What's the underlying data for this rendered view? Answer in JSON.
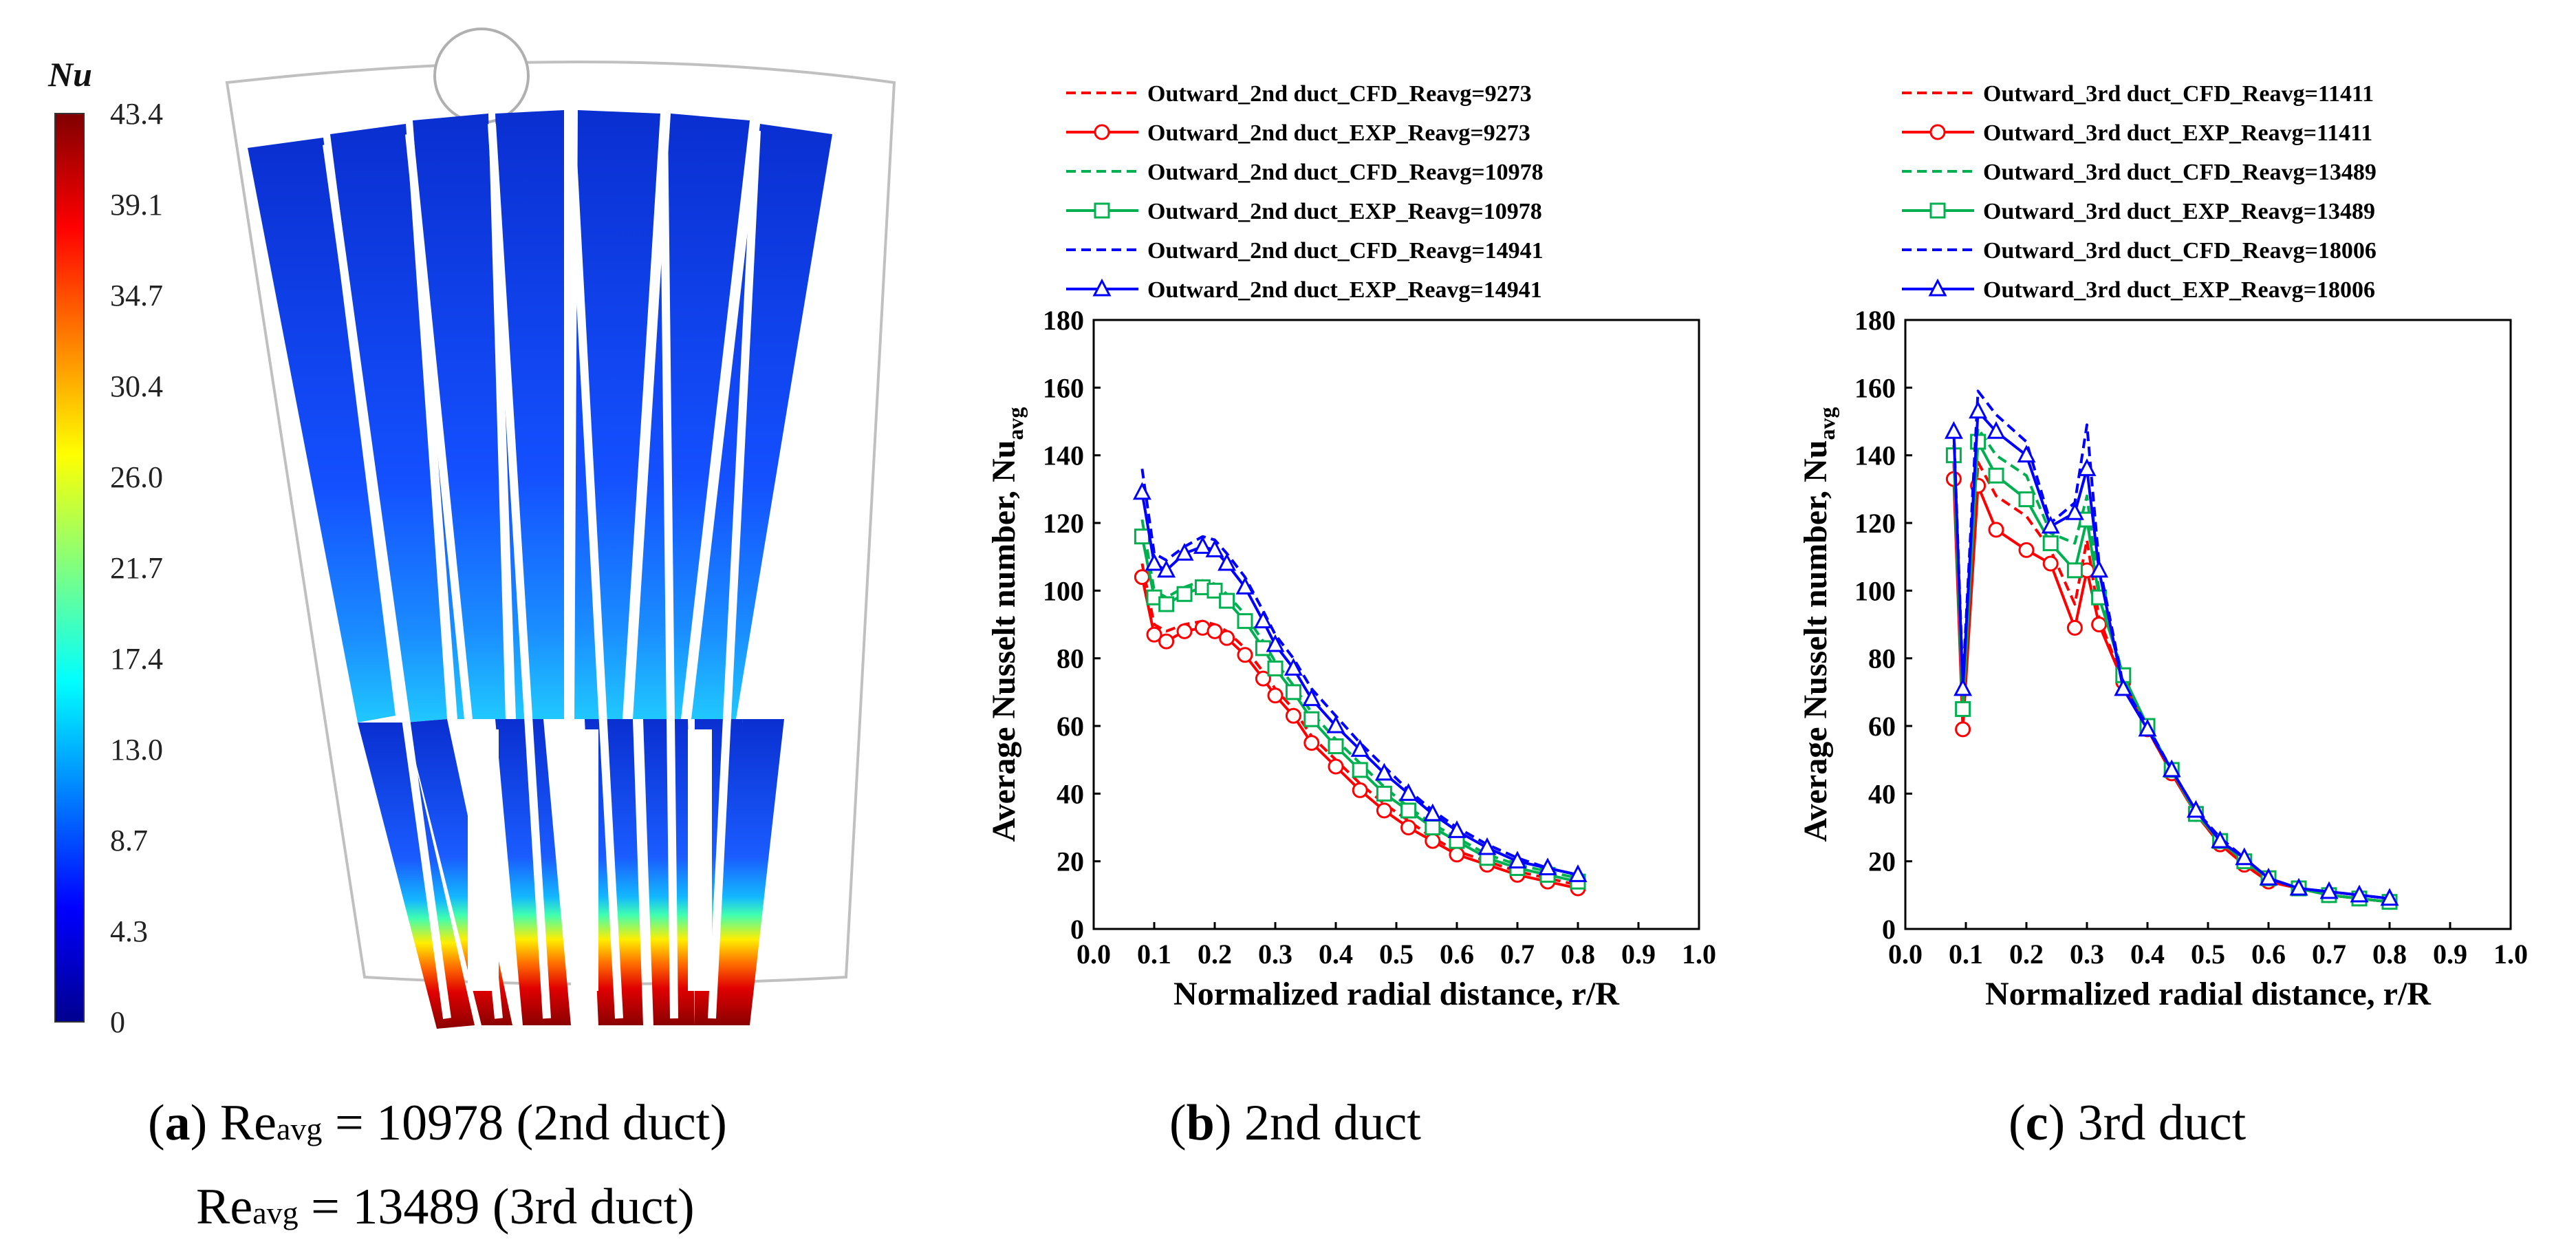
{
  "panel_a": {
    "colorbar": {
      "title": "Nu",
      "ticks": [
        "43.4",
        "39.1",
        "34.7",
        "30.4",
        "26.0",
        "21.7",
        "17.4",
        "13.0",
        "8.7",
        "4.3",
        "0"
      ],
      "range": [
        0,
        43.4
      ],
      "colors": [
        "#00008f",
        "#0000ff",
        "#0080ff",
        "#00ffff",
        "#80ff80",
        "#ffff00",
        "#ff8000",
        "#ff0000",
        "#800000"
      ]
    },
    "caption_letter": "a",
    "caption_line1_pre": "Re",
    "caption_line1_sub": "avg",
    "caption_line1_post": " = 10978 (2nd duct)",
    "caption_line2_pre": "Re",
    "caption_line2_sub": "avg",
    "caption_line2_post": " = 13489 (3rd duct)"
  },
  "chart_data": [
    {
      "type": "line",
      "panel": "b",
      "caption_letter": "b",
      "caption_text": "2nd duct",
      "xlabel": "Normalized radial distance, r/R",
      "ylabel_main": "Average Nusselt number, Nu",
      "ylabel_sub": "avg",
      "xlim": [
        0.0,
        1.0
      ],
      "ylim": [
        0,
        180
      ],
      "xticks": [
        "0.0",
        "0.1",
        "0.2",
        "0.3",
        "0.4",
        "0.5",
        "0.6",
        "0.7",
        "0.8",
        "0.9",
        "1.0"
      ],
      "yticks": [
        "0",
        "20",
        "40",
        "60",
        "80",
        "100",
        "120",
        "140",
        "160",
        "180"
      ],
      "legend_position": "top",
      "series": [
        {
          "name": "Outward_2nd duct_CFD_Reavg=9273",
          "color": "#ff0000",
          "dashed": true,
          "marker": "none",
          "x": [
            0.08,
            0.1,
            0.12,
            0.15,
            0.18,
            0.2,
            0.22,
            0.25,
            0.28,
            0.3,
            0.33,
            0.36,
            0.4,
            0.44,
            0.48,
            0.52,
            0.56,
            0.6,
            0.65,
            0.7,
            0.75,
            0.8
          ],
          "y": [
            108,
            90,
            88,
            90,
            91,
            90,
            88,
            83,
            76,
            71,
            65,
            57,
            50,
            43,
            37,
            32,
            27,
            23,
            20,
            17,
            15,
            13
          ]
        },
        {
          "name": "Outward_2nd duct_EXP_Reavg=9273",
          "color": "#ff0000",
          "dashed": false,
          "marker": "circle",
          "x": [
            0.08,
            0.1,
            0.12,
            0.15,
            0.18,
            0.2,
            0.22,
            0.25,
            0.28,
            0.3,
            0.33,
            0.36,
            0.4,
            0.44,
            0.48,
            0.52,
            0.56,
            0.6,
            0.65,
            0.7,
            0.75,
            0.8
          ],
          "y": [
            104,
            87,
            85,
            88,
            89,
            88,
            86,
            81,
            74,
            69,
            63,
            55,
            48,
            41,
            35,
            30,
            26,
            22,
            19,
            16,
            14,
            12
          ]
        },
        {
          "name": "Outward_2nd duct_CFD_Reavg=10978",
          "color": "#00b050",
          "dashed": true,
          "marker": "none",
          "x": [
            0.08,
            0.1,
            0.12,
            0.15,
            0.18,
            0.2,
            0.22,
            0.25,
            0.28,
            0.3,
            0.33,
            0.36,
            0.4,
            0.44,
            0.48,
            0.52,
            0.56,
            0.6,
            0.65,
            0.7,
            0.75,
            0.8
          ],
          "y": [
            121,
            100,
            98,
            101,
            103,
            102,
            99,
            93,
            85,
            79,
            72,
            64,
            56,
            49,
            42,
            36,
            31,
            27,
            22,
            19,
            17,
            15
          ]
        },
        {
          "name": "Outward_2nd duct_EXP_Reavg=10978",
          "color": "#00b050",
          "dashed": false,
          "marker": "square",
          "x": [
            0.08,
            0.1,
            0.12,
            0.15,
            0.18,
            0.2,
            0.22,
            0.25,
            0.28,
            0.3,
            0.33,
            0.36,
            0.4,
            0.44,
            0.48,
            0.52,
            0.56,
            0.6,
            0.65,
            0.7,
            0.75,
            0.8
          ],
          "y": [
            116,
            98,
            96,
            99,
            101,
            100,
            97,
            91,
            83,
            77,
            70,
            62,
            54,
            47,
            40,
            35,
            30,
            26,
            21,
            18,
            16,
            14
          ]
        },
        {
          "name": "Outward_2nd duct_CFD_Reavg=14941",
          "color": "#0000ff",
          "dashed": true,
          "marker": "none",
          "x": [
            0.08,
            0.1,
            0.12,
            0.15,
            0.18,
            0.2,
            0.22,
            0.25,
            0.28,
            0.3,
            0.33,
            0.36,
            0.4,
            0.44,
            0.48,
            0.52,
            0.56,
            0.6,
            0.65,
            0.7,
            0.75,
            0.8
          ],
          "y": [
            136,
            111,
            109,
            113,
            116,
            115,
            111,
            104,
            94,
            87,
            80,
            71,
            63,
            55,
            48,
            41,
            35,
            30,
            25,
            21,
            18,
            16
          ]
        },
        {
          "name": "Outward_2nd duct_EXP_Reavg=14941",
          "color": "#0000ff",
          "dashed": false,
          "marker": "triangle",
          "x": [
            0.08,
            0.1,
            0.12,
            0.15,
            0.18,
            0.2,
            0.22,
            0.25,
            0.28,
            0.3,
            0.33,
            0.36,
            0.4,
            0.44,
            0.48,
            0.52,
            0.56,
            0.6,
            0.65,
            0.7,
            0.75,
            0.8
          ],
          "y": [
            129,
            108,
            106,
            111,
            113,
            112,
            108,
            101,
            91,
            84,
            77,
            68,
            60,
            53,
            46,
            40,
            34,
            29,
            24,
            20,
            18,
            16
          ]
        }
      ]
    },
    {
      "type": "line",
      "panel": "c",
      "caption_letter": "c",
      "caption_text": "3rd duct",
      "xlabel": "Normalized radial distance, r/R",
      "ylabel_main": "Average Nusselt number, Nu",
      "ylabel_sub": "avg",
      "xlim": [
        0.0,
        1.0
      ],
      "ylim": [
        0,
        180
      ],
      "xticks": [
        "0.0",
        "0.1",
        "0.2",
        "0.3",
        "0.4",
        "0.5",
        "0.6",
        "0.7",
        "0.8",
        "0.9",
        "1.0"
      ],
      "yticks": [
        "0",
        "20",
        "40",
        "60",
        "80",
        "100",
        "120",
        "140",
        "160",
        "180"
      ],
      "legend_position": "top",
      "series": [
        {
          "name": "Outward_3rd duct_CFD_Reavg=11411",
          "color": "#ff0000",
          "dashed": true,
          "marker": "none",
          "x": [
            0.08,
            0.095,
            0.12,
            0.15,
            0.2,
            0.24,
            0.28,
            0.3,
            0.32,
            0.36,
            0.4,
            0.44,
            0.48,
            0.52,
            0.56,
            0.6,
            0.65,
            0.7,
            0.75,
            0.8
          ],
          "y": [
            138,
            62,
            138,
            128,
            122,
            112,
            96,
            115,
            92,
            73,
            59,
            46,
            34,
            25,
            19,
            14,
            12,
            10,
            9,
            8
          ]
        },
        {
          "name": "Outward_3rd duct_EXP_Reavg=11411",
          "color": "#ff0000",
          "dashed": false,
          "marker": "circle",
          "x": [
            0.08,
            0.095,
            0.12,
            0.15,
            0.2,
            0.24,
            0.28,
            0.3,
            0.32,
            0.36,
            0.4,
            0.44,
            0.48,
            0.52,
            0.56,
            0.6,
            0.65,
            0.7,
            0.75,
            0.8
          ],
          "y": [
            133,
            59,
            131,
            118,
            112,
            108,
            89,
            106,
            90,
            73,
            59,
            46,
            34,
            25,
            19,
            14,
            12,
            10,
            9,
            8
          ]
        },
        {
          "name": "Outward_3rd duct_CFD_Reavg=13489",
          "color": "#00b050",
          "dashed": true,
          "marker": "none",
          "x": [
            0.08,
            0.095,
            0.12,
            0.15,
            0.2,
            0.24,
            0.28,
            0.3,
            0.32,
            0.36,
            0.4,
            0.44,
            0.48,
            0.52,
            0.56,
            0.6,
            0.65,
            0.7,
            0.75,
            0.8
          ],
          "y": [
            143,
            68,
            148,
            140,
            134,
            117,
            114,
            128,
            100,
            75,
            60,
            47,
            34,
            26,
            20,
            15,
            12,
            10,
            9,
            8
          ]
        },
        {
          "name": "Outward_3rd duct_EXP_Reavg=13489",
          "color": "#00b050",
          "dashed": false,
          "marker": "square",
          "x": [
            0.08,
            0.095,
            0.12,
            0.15,
            0.2,
            0.24,
            0.28,
            0.3,
            0.32,
            0.36,
            0.4,
            0.44,
            0.48,
            0.52,
            0.56,
            0.6,
            0.65,
            0.7,
            0.75,
            0.8
          ],
          "y": [
            140,
            65,
            144,
            134,
            127,
            114,
            106,
            121,
            98,
            75,
            60,
            47,
            34,
            26,
            20,
            15,
            12,
            10,
            9,
            8
          ]
        },
        {
          "name": "Outward_3rd duct_CFD_Reavg=18006",
          "color": "#0000ff",
          "dashed": true,
          "marker": "none",
          "x": [
            0.08,
            0.095,
            0.12,
            0.15,
            0.2,
            0.24,
            0.28,
            0.3,
            0.32,
            0.36,
            0.4,
            0.44,
            0.48,
            0.52,
            0.56,
            0.6,
            0.65,
            0.7,
            0.75,
            0.8
          ],
          "y": [
            148,
            73,
            159,
            152,
            144,
            120,
            126,
            149,
            108,
            72,
            60,
            47,
            35,
            27,
            21,
            15,
            12,
            11,
            10,
            9
          ]
        },
        {
          "name": "Outward_3rd duct_EXP_Reavg=18006",
          "color": "#0000ff",
          "dashed": false,
          "marker": "triangle",
          "x": [
            0.08,
            0.095,
            0.12,
            0.15,
            0.2,
            0.24,
            0.28,
            0.3,
            0.32,
            0.36,
            0.4,
            0.44,
            0.48,
            0.52,
            0.56,
            0.6,
            0.65,
            0.7,
            0.75,
            0.8
          ],
          "y": [
            147,
            71,
            153,
            147,
            140,
            119,
            123,
            136,
            106,
            71,
            59,
            47,
            35,
            26,
            21,
            15,
            12,
            11,
            10,
            9
          ]
        }
      ]
    }
  ]
}
